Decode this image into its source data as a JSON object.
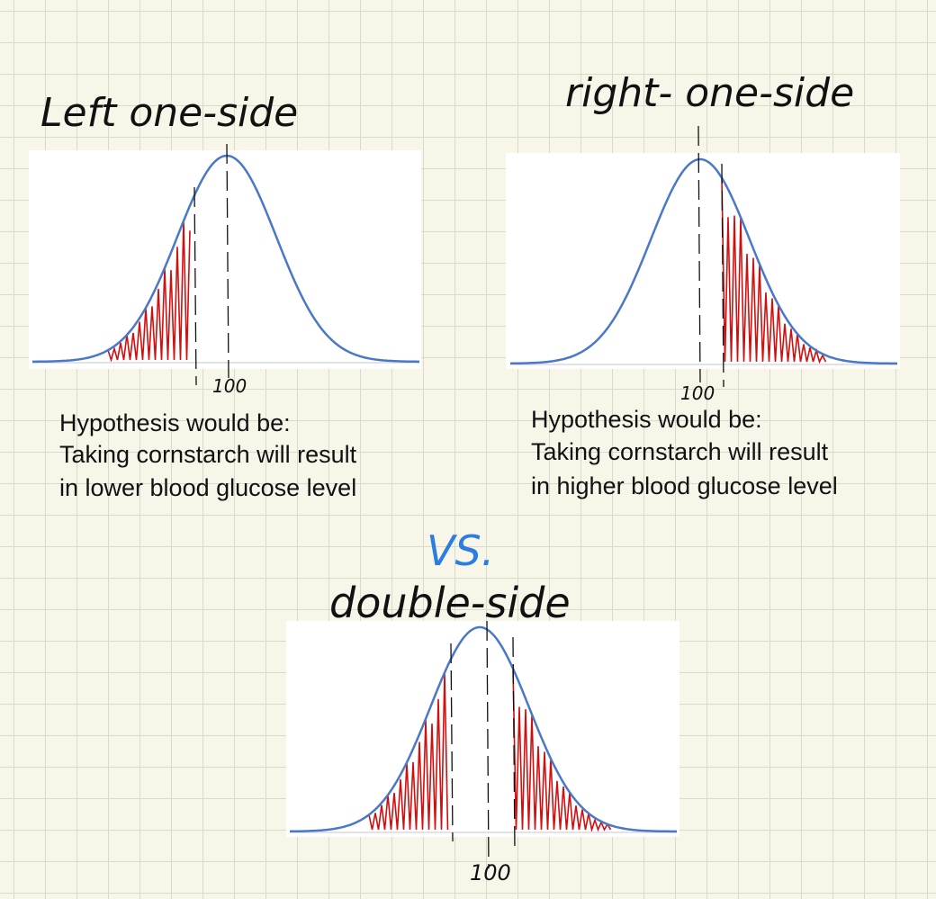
{
  "left": {
    "title": "Left one-side",
    "center_label": "100",
    "hypothesis": [
      "Hypothesis would be:",
      "Taking cornstarch will result",
      "in lower blood glucose level"
    ]
  },
  "right": {
    "title": "right- one-side",
    "center_label": "100",
    "hypothesis": [
      "Hypothesis would be:",
      "Taking cornstarch will result",
      "in higher blood glucose level"
    ]
  },
  "separator": "VS.",
  "double": {
    "title": "double-side",
    "center_label": "100"
  }
}
